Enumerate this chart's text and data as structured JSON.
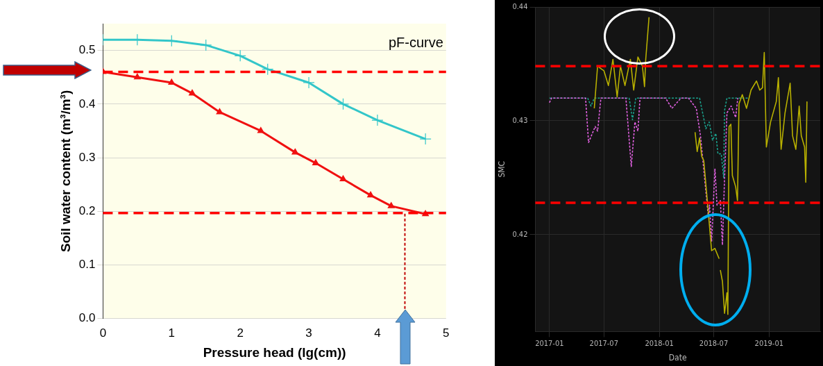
{
  "chart_data": [
    {
      "type": "line",
      "xlabel": "Pressure head (lg(cm))",
      "ylabel": "Soil water content (m³/m³)",
      "annotations": [
        "pF-curve"
      ],
      "xlim": [
        0,
        5
      ],
      "ylim": [
        0,
        0.55
      ],
      "xticks": [
        0,
        1,
        2,
        3,
        4,
        5
      ],
      "yticks": [
        {
          "value": 0,
          "label": "0.0"
        },
        0.1,
        0.2,
        0.3,
        0.4,
        0.5
      ],
      "grid": "y",
      "ref_lines": [
        {
          "axis": "y",
          "value": 0.46,
          "color": "#ff0000",
          "line_style": "dashed"
        },
        {
          "axis": "y",
          "value": 0.197,
          "color": "#ff0000",
          "line_style": "dashed"
        },
        {
          "axis": "x",
          "value": 4.4,
          "color": "#c00000",
          "line_style": "dotted"
        }
      ],
      "series": [
        {
          "color": "#33c6c9",
          "marker": "cross",
          "x": [
            0,
            0.5,
            1,
            1.5,
            2,
            2.4,
            3,
            3.5,
            4,
            4.7
          ],
          "values": [
            0.52,
            0.52,
            0.518,
            0.51,
            0.49,
            0.465,
            0.44,
            0.4,
            0.37,
            0.335
          ]
        },
        {
          "color": "#f01010",
          "marker": "triangle",
          "x": [
            0,
            0.5,
            1,
            1.3,
            1.7,
            2.3,
            2.8,
            3.1,
            3.5,
            3.9,
            4.2,
            4.7
          ],
          "values": [
            0.46,
            0.45,
            0.44,
            0.42,
            0.385,
            0.35,
            0.31,
            0.29,
            0.26,
            0.23,
            0.21,
            0.195
          ]
        }
      ]
    },
    {
      "type": "line",
      "xlabel": "Date",
      "ylabel": "SMC",
      "xlim": [
        "2016-11-15",
        "2019-06-20"
      ],
      "ylim": [
        0.4115,
        0.44
      ],
      "xticks": [
        "2017-01",
        "2017-07",
        "2018-01",
        "2018-07",
        "2019-01"
      ],
      "yticks": [
        0.42,
        0.43,
        0.44
      ],
      "grid": true,
      "marker": "none",
      "ref_lines": [
        {
          "axis": "y",
          "value": 0.4348,
          "color": "#ff0000",
          "line_style": "dashed"
        },
        {
          "axis": "y",
          "value": 0.4228,
          "color": "#ff0000",
          "line_style": "dashed"
        }
      ],
      "series": [
        {
          "color": "#1a9e8a",
          "line_style": "dotted",
          "x": [
            "2017-01-01",
            "2017-05-08",
            "2017-05-19",
            "2017-05-30",
            "2017-09-23",
            "2017-10-04",
            "2017-10-15",
            "2018-05-15",
            "2018-06-05",
            "2018-06-16",
            "2018-06-27",
            "2018-07-08",
            "2018-07-15",
            "2018-07-26",
            "2018-08-03",
            "2018-08-06",
            "2018-08-14",
            "2018-10-26"
          ],
          "values": [
            0.432,
            0.432,
            0.4313,
            0.432,
            0.432,
            0.4301,
            0.432,
            0.432,
            0.4293,
            0.4299,
            0.4283,
            0.4289,
            0.4271,
            0.4271,
            0.425,
            0.4309,
            0.432,
            0.432
          ]
        },
        {
          "color": "#e060e0",
          "line_style": "dotted",
          "x": [
            "2017-01-01",
            "2017-01-08",
            "2017-05-01",
            "2017-05-11",
            "2017-06-02",
            "2017-06-10",
            "2017-06-21",
            "2017-09-12",
            "2017-09-30",
            "2017-10-12",
            "2017-10-22",
            "2017-10-29",
            "2018-01-22",
            "2018-02-12",
            "2018-03-14",
            "2018-04-08",
            "2018-05-04",
            "2018-05-18",
            "2018-06-02",
            "2018-06-13",
            "2018-06-17",
            "2018-06-24",
            "2018-07-05",
            "2018-07-12",
            "2018-07-23",
            "2018-07-30",
            "2018-08-06",
            "2018-08-14",
            "2018-08-28",
            "2018-09-12",
            "2018-09-19"
          ],
          "values": [
            0.4316,
            0.432,
            0.432,
            0.4281,
            0.4295,
            0.4291,
            0.432,
            0.432,
            0.426,
            0.4299,
            0.4291,
            0.432,
            0.432,
            0.4311,
            0.432,
            0.432,
            0.4311,
            0.4287,
            0.4246,
            0.4216,
            0.4226,
            0.4194,
            0.4258,
            0.4226,
            0.423,
            0.4191,
            0.425,
            0.4307,
            0.4313,
            0.4303,
            0.432
          ]
        },
        {
          "color": "#b8b000",
          "x": [
            "2017-05-30",
            "2017-06-10",
            "2017-07-01",
            "2017-07-16",
            "2017-07-31",
            "2017-08-14",
            "2017-08-25",
            "2017-09-09",
            "2017-09-27",
            "2017-10-08",
            "2017-10-22",
            "2017-11-06",
            "2017-11-13",
            "2017-11-17",
            "2017-11-28",
            "2018-01-15",
            "2018-04-30",
            "2018-05-07",
            "2018-05-15",
            "2018-05-22",
            "2018-05-29",
            "2018-06-13",
            "2018-06-20",
            "2018-06-24",
            "2018-07-05",
            "2018-07-19",
            "2018-07-21",
            "2018-07-23",
            "2018-07-30",
            "2018-08-06",
            "2018-08-14",
            "2018-08-17",
            "2018-08-21",
            "2018-08-27",
            "2018-09-01",
            "2018-09-12",
            "2018-09-18",
            "2018-09-23",
            "2018-10-04",
            "2018-10-18",
            "2018-11-02",
            "2018-11-20",
            "2018-12-01",
            "2018-12-10",
            "2018-12-16",
            "2018-12-23",
            "2019-01-06",
            "2019-01-25",
            "2019-02-01",
            "2019-02-10",
            "2019-02-23",
            "2019-03-12",
            "2019-03-20",
            "2019-03-31",
            "2019-04-11",
            "2019-04-18",
            "2019-04-29",
            "2019-05-03",
            "2019-05-07"
          ],
          "values": [
            0.4311,
            0.4348,
            0.4344,
            0.4331,
            0.4354,
            0.4321,
            0.4348,
            0.4331,
            0.4354,
            0.4327,
            0.4356,
            0.4348,
            0.433,
            0.4354,
            0.4391,
            null,
            0.429,
            0.4273,
            0.4285,
            0.4269,
            0.4265,
            0.422,
            0.4198,
            0.4186,
            0.4188,
            0.4179,
            null,
            0.4169,
            0.4159,
            0.4131,
            0.4149,
            0.413,
            0.4295,
            0.4297,
            0.4252,
            0.4242,
            0.423,
            0.4315,
            0.4323,
            0.4311,
            0.4327,
            0.4335,
            0.4327,
            0.4329,
            0.436,
            0.4277,
            0.4299,
            0.4317,
            0.4338,
            0.4275,
            0.4307,
            0.4333,
            0.4287,
            0.4275,
            0.4313,
            0.4287,
            0.4277,
            0.4246,
            0.4317
          ]
        }
      ]
    }
  ]
}
